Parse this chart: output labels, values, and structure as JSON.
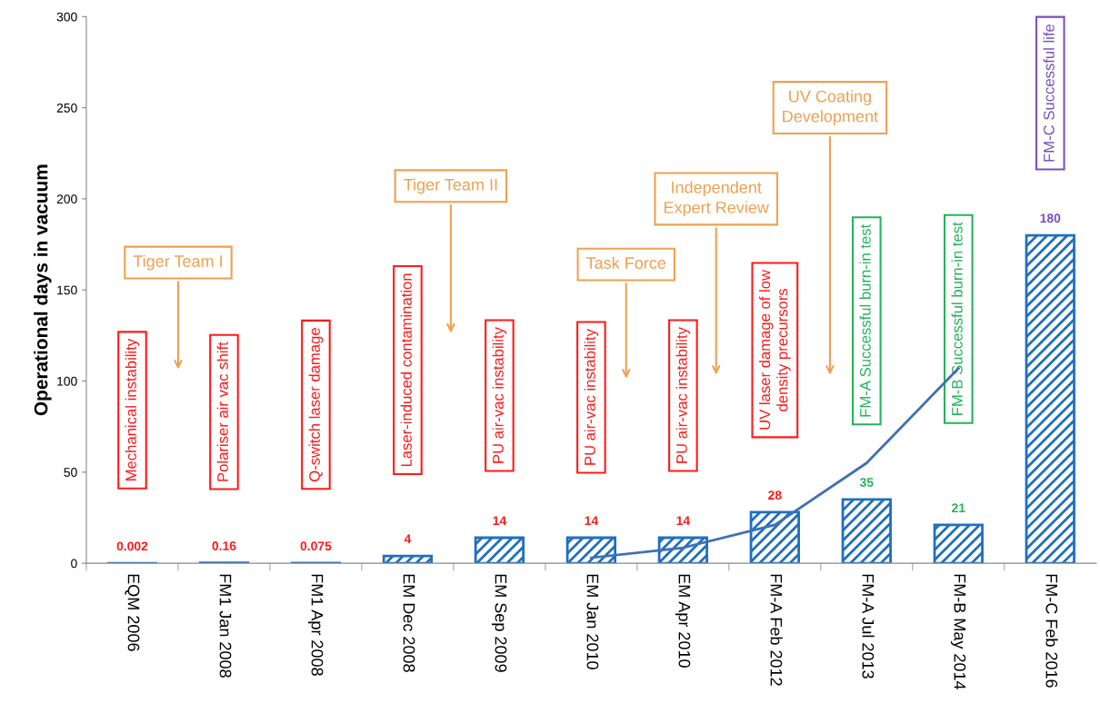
{
  "chart_data": {
    "type": "bar",
    "ylabel": "Operational days in vacuum",
    "categories": [
      "EQM 2006",
      "FM1 Jan 2008",
      "FM1 Apr 2008",
      "EM Dec 2008",
      "EM Sep 2009",
      "EM Jan 2010",
      "EM Apr 2010",
      "FM-A Feb 2012",
      "FM-A Jul 2013",
      "FM-B May 2014",
      "FM-C Feb 2016"
    ],
    "series": [
      {
        "color": "#1f6fc0",
        "values": [
          0.002,
          0.16,
          0.075,
          4,
          14,
          14,
          14,
          28,
          35,
          21,
          180
        ],
        "value_labels": [
          "0.002",
          "0.16",
          "0.075",
          "4",
          "14",
          "14",
          "14",
          "28",
          "35",
          "21",
          "180"
        ]
      },
      {
        "type": "line",
        "color": "#3f6fb5",
        "values": [
          null,
          null,
          null,
          null,
          null,
          3,
          8.5,
          21,
          55,
          107,
          null
        ]
      }
    ],
    "ylim": [
      0,
      300
    ],
    "yticks": [
      0,
      50,
      100,
      150,
      200,
      250,
      300
    ],
    "grid": false,
    "marker": "none",
    "line_style": "solid",
    "annotations": [
      "Mechanical instability",
      "Polariser air vac shift",
      "Q-switch laser damage",
      "Laser-induced contamination",
      "PU air-vac instability",
      "PU air-vac instability",
      "PU air-vac instability",
      "UV laser damage of low\ndensity precursors",
      "FM-A Successful burn-in test",
      "FM-B Successful burn-in test",
      "FM-C Successful life",
      "Tiger Team I",
      "Tiger Team II",
      "Task Force",
      "Independent\nExpert Review",
      "UV Coating\nDevelopment"
    ]
  }
}
